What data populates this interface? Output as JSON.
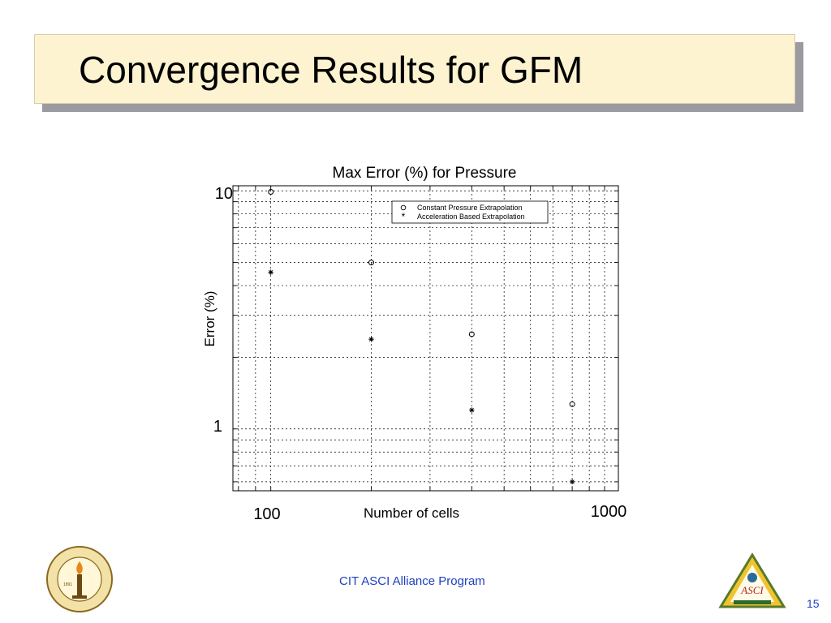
{
  "slide": {
    "title": "Convergence Results for GFM",
    "footer": "CIT ASCI Alliance Program",
    "page_number": "15"
  },
  "logos": {
    "left_icon": "caltech-seal-icon",
    "left_text_top": "CALIFORNIA INSTITUTE OF TECHNOLOGY",
    "left_year": "1891",
    "right_icon": "asci-triangle-logo-icon",
    "right_text": "ASCI"
  },
  "chart_data": {
    "type": "scatter",
    "title": "Max Error (%) for Pressure",
    "xlabel": "Number of cells",
    "ylabel": "Error (%)",
    "x_scale": "log",
    "y_scale": "log",
    "xlim": [
      77,
      1100
    ],
    "ylim": [
      0.55,
      10.5
    ],
    "x_tick_labels": [
      "100",
      "1000"
    ],
    "y_tick_labels": [
      "10",
      "1"
    ],
    "grid": true,
    "legend_position": "top-right",
    "series": [
      {
        "name": "Constant Pressure Extrapolation",
        "marker": "circle",
        "x": [
          100,
          200,
          400,
          800
        ],
        "y": [
          9.9,
          5.0,
          2.5,
          1.27
        ]
      },
      {
        "name": "Acceleration Based Extrapolation",
        "marker": "asterisk",
        "x": [
          100,
          200,
          400,
          800
        ],
        "y": [
          4.55,
          2.38,
          1.2,
          0.6
        ]
      }
    ]
  }
}
